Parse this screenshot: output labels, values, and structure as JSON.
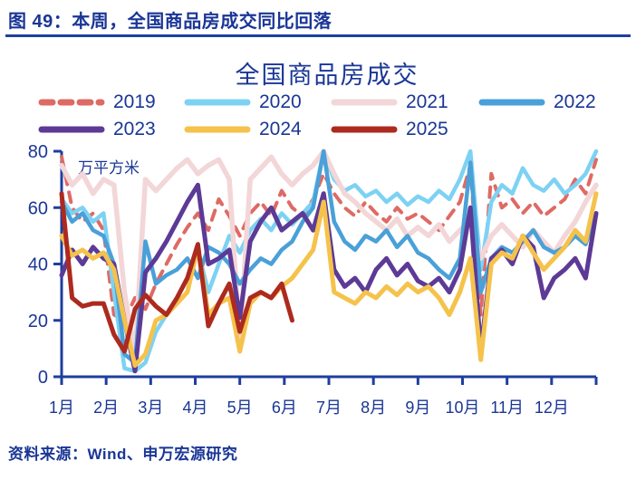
{
  "figure": {
    "number_title": "图 49：本周，全国商品房成交同比回落",
    "source": "资料来源：Wind、申万宏源研究"
  },
  "chart_data": {
    "type": "line",
    "title": "全国商品房成交",
    "unit_label": "万平方米",
    "x_axis": {
      "tick_labels": [
        "1月",
        "2月",
        "3月",
        "4月",
        "5月",
        "6月",
        "7月",
        "8月",
        "9月",
        "10月",
        "11月",
        "12月"
      ],
      "points_per_year": 52,
      "note": "weekly data, Jan-Dec"
    },
    "y_axis": {
      "min": 0,
      "max": 80,
      "ticks": [
        0,
        20,
        40,
        60,
        80
      ]
    },
    "grid": false,
    "legend_position": "top",
    "colors": {
      "axis": "#1E3F9E",
      "text": "#1A3696"
    },
    "series": [
      {
        "name": "2019",
        "color": "#DE6A64",
        "style": "dashed",
        "line_width": 4,
        "values": [
          78,
          60,
          55,
          58,
          52,
          22,
          20,
          28,
          24,
          33,
          40,
          47,
          53,
          58,
          52,
          63,
          57,
          50,
          58,
          62,
          57,
          66,
          60,
          57,
          63,
          72,
          65,
          60,
          57,
          62,
          58,
          55,
          60,
          56,
          58,
          55,
          52,
          57,
          62,
          75,
          22,
          72,
          60,
          63,
          58,
          62,
          57,
          60,
          63,
          70,
          65,
          77
        ]
      },
      {
        "name": "2020",
        "color": "#7DD2F3",
        "style": "solid",
        "line_width": 4.5,
        "values": [
          63,
          58,
          60,
          55,
          58,
          30,
          3,
          2,
          5,
          16,
          22,
          28,
          35,
          45,
          30,
          40,
          50,
          44,
          52,
          56,
          52,
          58,
          54,
          58,
          62,
          80,
          70,
          66,
          68,
          64,
          66,
          62,
          65,
          61,
          64,
          62,
          66,
          63,
          70,
          80,
          38,
          62,
          68,
          65,
          74,
          68,
          66,
          70,
          65,
          68,
          72,
          80
        ]
      },
      {
        "name": "2021",
        "color": "#F3D6D8",
        "style": "solid",
        "line_width": 5.5,
        "values": [
          75,
          68,
          72,
          65,
          70,
          68,
          30,
          8,
          70,
          66,
          70,
          74,
          77,
          72,
          75,
          77,
          70,
          13,
          70,
          74,
          78,
          72,
          68,
          72,
          75,
          80,
          72,
          65,
          62,
          58,
          55,
          52,
          56,
          50,
          53,
          50,
          54,
          48,
          52,
          55,
          42,
          50,
          54,
          50,
          46,
          52,
          48,
          44,
          50,
          55,
          62,
          68
        ]
      },
      {
        "name": "2022",
        "color": "#4AA0D8",
        "style": "solid",
        "line_width": 4.5,
        "values": [
          62,
          55,
          58,
          52,
          50,
          40,
          8,
          5,
          48,
          33,
          36,
          38,
          42,
          35,
          46,
          44,
          40,
          33,
          38,
          42,
          40,
          45,
          48,
          55,
          60,
          80,
          55,
          48,
          45,
          50,
          48,
          52,
          46,
          50,
          44,
          42,
          38,
          35,
          42,
          76,
          30,
          42,
          46,
          44,
          48,
          52,
          46,
          44,
          46,
          50,
          47,
          58
        ]
      },
      {
        "name": "2023",
        "color": "#5C3A96",
        "style": "solid",
        "line_width": 5,
        "values": [
          36,
          45,
          40,
          46,
          42,
          40,
          20,
          2,
          37,
          42,
          48,
          55,
          62,
          68,
          40,
          42,
          45,
          21,
          48,
          55,
          60,
          52,
          55,
          58,
          52,
          65,
          38,
          32,
          35,
          30,
          38,
          42,
          36,
          40,
          34,
          32,
          35,
          30,
          38,
          60,
          9,
          42,
          45,
          40,
          50,
          46,
          28,
          35,
          38,
          42,
          35,
          58
        ]
      },
      {
        "name": "2024",
        "color": "#F5C24B",
        "style": "solid",
        "line_width": 5,
        "values": [
          50,
          43,
          45,
          42,
          44,
          38,
          20,
          4,
          8,
          20,
          22,
          26,
          30,
          46,
          22,
          26,
          28,
          9,
          26,
          30,
          28,
          32,
          35,
          40,
          45,
          62,
          30,
          28,
          26,
          30,
          28,
          32,
          29,
          33,
          30,
          32,
          28,
          22,
          30,
          42,
          6,
          40,
          44,
          42,
          50,
          44,
          38,
          42,
          46,
          52,
          48,
          65
        ]
      },
      {
        "name": "2025",
        "color": "#AD2A1E",
        "style": "solid",
        "line_width": 5,
        "values": [
          65,
          28,
          25,
          26,
          26,
          15,
          9,
          24,
          29,
          25,
          22,
          28,
          35,
          47,
          18,
          26,
          33,
          16,
          28,
          30,
          28,
          33,
          20
        ]
      }
    ]
  }
}
